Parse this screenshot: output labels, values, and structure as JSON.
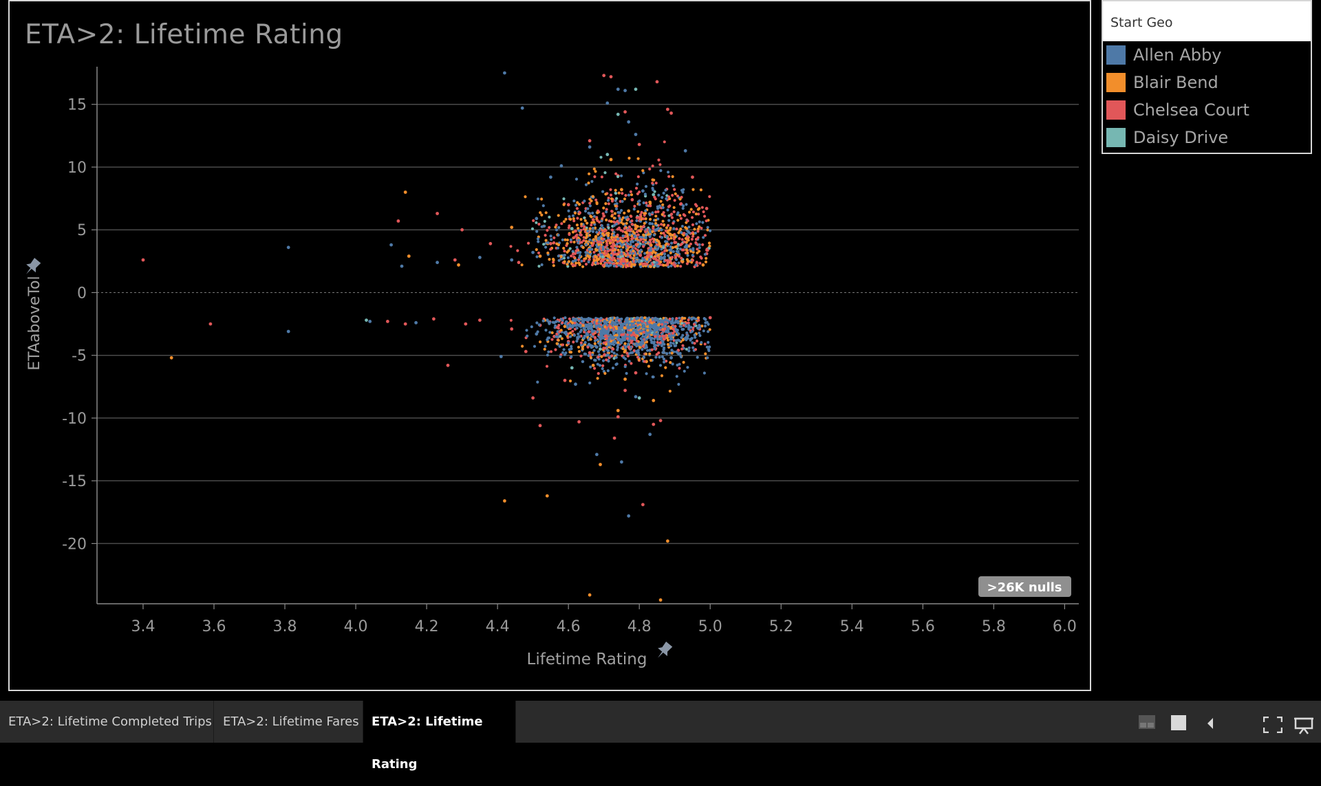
{
  "chart_data": {
    "type": "scatter",
    "title": "ETA>2: Lifetime Rating",
    "xlabel": "Lifetime Rating",
    "ylabel": "ETAaboveTol",
    "xlim": [
      3.27,
      6.04
    ],
    "ylim": [
      -24.8,
      18
    ],
    "x_ticks": [
      "3.4",
      "3.6",
      "3.8",
      "4.0",
      "4.2",
      "4.4",
      "4.6",
      "4.8",
      "5.0",
      "5.2",
      "5.4",
      "5.6",
      "5.8",
      "6.0"
    ],
    "y_ticks": [
      "15",
      "10",
      "5",
      "0",
      "-5",
      "-10",
      "-15",
      "-20"
    ],
    "reference_line_y": 0,
    "grid": "horizontal",
    "null_badge": ">26K nulls",
    "series": [
      {
        "name": "Allen Abby",
        "color": "#4e79a7",
        "points": [
          [
            4.42,
            17.5
          ],
          [
            4.47,
            14.7
          ],
          [
            4.74,
            16.2
          ],
          [
            4.76,
            16.1
          ],
          [
            4.71,
            15.1
          ],
          [
            4.77,
            13.6
          ],
          [
            4.81,
            8.1
          ],
          [
            4.93,
            11.3
          ],
          [
            4.58,
            10.1
          ],
          [
            4.66,
            11.6
          ],
          [
            4.79,
            12.6
          ],
          [
            4.55,
            9.2
          ],
          [
            4.51,
            5.9
          ],
          [
            4.5,
            3.2
          ],
          [
            4.69,
            3.6
          ],
          [
            4.91,
            3.1
          ],
          [
            4.62,
            2.6
          ],
          [
            4.78,
            2.4
          ],
          [
            4.85,
            2.9
          ],
          [
            4.71,
            4.7
          ],
          [
            4.35,
            2.8
          ],
          [
            4.23,
            2.4
          ],
          [
            4.44,
            2.6
          ],
          [
            4.67,
            7.6
          ],
          [
            4.83,
            5.5
          ],
          [
            4.1,
            3.8
          ],
          [
            3.81,
            3.6
          ],
          [
            4.13,
            2.1
          ],
          [
            3.81,
            -3.1
          ],
          [
            4.04,
            -2.3
          ],
          [
            4.17,
            -2.4
          ],
          [
            4.41,
            -5.1
          ],
          [
            4.51,
            -3.3
          ],
          [
            4.73,
            -3.1
          ],
          [
            4.83,
            -4.6
          ],
          [
            4.94,
            -2.8
          ],
          [
            4.62,
            -7.3
          ],
          [
            4.79,
            -8.3
          ],
          [
            4.68,
            -12.9
          ],
          [
            4.75,
            -13.5
          ],
          [
            4.83,
            -11.3
          ],
          [
            4.77,
            -17.8
          ],
          [
            4.64,
            -2.6
          ],
          [
            4.88,
            -2.4
          ],
          [
            4.57,
            -4.1
          ],
          [
            4.69,
            -2.4
          ],
          [
            4.75,
            -2.5
          ],
          [
            4.82,
            -3.9
          ],
          [
            4.54,
            -2.2
          ],
          [
            4.89,
            -5.2
          ]
        ]
      },
      {
        "name": "Blair Bend",
        "color": "#f28e2b",
        "points": [
          [
            3.48,
            -5.2
          ],
          [
            4.14,
            8.0
          ],
          [
            4.15,
            2.9
          ],
          [
            4.29,
            2.2
          ],
          [
            4.44,
            5.2
          ],
          [
            4.57,
            4.6
          ],
          [
            4.63,
            6.3
          ],
          [
            4.7,
            3.5
          ],
          [
            4.75,
            8.2
          ],
          [
            4.79,
            5.1
          ],
          [
            4.85,
            3.8
          ],
          [
            4.92,
            2.5
          ],
          [
            4.98,
            2.2
          ],
          [
            4.72,
            10.6
          ],
          [
            4.83,
            7.2
          ],
          [
            4.61,
            2.3
          ],
          [
            4.65,
            3.8
          ],
          [
            4.88,
            4.9
          ],
          [
            4.52,
            2.9
          ],
          [
            4.77,
            6.5
          ],
          [
            4.59,
            -2.7
          ],
          [
            4.71,
            -3.5
          ],
          [
            4.8,
            -4.2
          ],
          [
            4.88,
            -3.1
          ],
          [
            4.67,
            -5.8
          ],
          [
            4.76,
            -6.9
          ],
          [
            4.93,
            -2.4
          ],
          [
            4.84,
            -8.6
          ],
          [
            4.74,
            -9.4
          ],
          [
            4.54,
            -16.2
          ],
          [
            4.42,
            -16.6
          ],
          [
            4.88,
            -19.8
          ],
          [
            4.86,
            -24.5
          ],
          [
            4.66,
            -24.1
          ],
          [
            4.69,
            -13.7
          ],
          [
            4.64,
            -4.3
          ],
          [
            4.82,
            -5.5
          ],
          [
            4.73,
            -2.6
          ],
          [
            4.96,
            -3.3
          ],
          [
            4.62,
            -2.4
          ]
        ]
      },
      {
        "name": "Chelsea Court",
        "color": "#e15759",
        "points": [
          [
            3.4,
            2.6
          ],
          [
            3.59,
            -2.5
          ],
          [
            4.14,
            -2.5
          ],
          [
            4.12,
            5.7
          ],
          [
            4.23,
            6.3
          ],
          [
            4.22,
            -2.1
          ],
          [
            4.3,
            5.0
          ],
          [
            4.26,
            -5.8
          ],
          [
            4.31,
            -2.5
          ],
          [
            4.38,
            3.9
          ],
          [
            4.44,
            -2.9
          ],
          [
            4.5,
            -8.4
          ],
          [
            4.52,
            -10.6
          ],
          [
            4.56,
            -3.5
          ],
          [
            4.6,
            7.0
          ],
          [
            4.63,
            -2.2
          ],
          [
            4.66,
            12.1
          ],
          [
            4.7,
            17.3
          ],
          [
            4.72,
            17.2
          ],
          [
            4.76,
            14.4
          ],
          [
            4.85,
            16.8
          ],
          [
            4.88,
            14.6
          ],
          [
            4.89,
            14.3
          ],
          [
            4.95,
            9.2
          ],
          [
            4.99,
            6.7
          ],
          [
            4.99,
            3.1
          ],
          [
            5.0,
            -2.0
          ],
          [
            4.97,
            -2.9
          ],
          [
            4.91,
            -4.6
          ],
          [
            4.86,
            -10.2
          ],
          [
            4.84,
            -10.5
          ],
          [
            4.81,
            -16.9
          ],
          [
            4.73,
            -11.6
          ],
          [
            4.74,
            -9.9
          ],
          [
            4.63,
            -10.3
          ],
          [
            4.59,
            -7.0
          ],
          [
            4.48,
            -4.7
          ],
          [
            4.67,
            5.8
          ],
          [
            4.74,
            9.3
          ],
          [
            4.8,
            11.8
          ],
          [
            4.69,
            2.8
          ],
          [
            4.77,
            3.0
          ],
          [
            4.83,
            2.6
          ],
          [
            4.9,
            4.0
          ],
          [
            4.58,
            2.7
          ],
          [
            4.46,
            2.4
          ],
          [
            4.55,
            3.9
          ],
          [
            4.62,
            4.9
          ],
          [
            4.7,
            6.1
          ],
          [
            4.78,
            7.4
          ],
          [
            4.66,
            -4.8
          ],
          [
            4.79,
            -6.4
          ],
          [
            4.87,
            -3.7
          ],
          [
            4.7,
            -2.2
          ],
          [
            4.76,
            -7.8
          ],
          [
            4.6,
            -3.9
          ],
          [
            4.52,
            -2.6
          ],
          [
            4.09,
            -2.3
          ],
          [
            4.35,
            -2.2
          ],
          [
            4.28,
            2.6
          ]
        ]
      },
      {
        "name": "Daisy Drive",
        "color": "#76b7b2",
        "points": [
          [
            4.71,
            11.0
          ],
          [
            4.74,
            14.2
          ],
          [
            4.79,
            16.2
          ],
          [
            4.84,
            7.8
          ],
          [
            4.61,
            5.1
          ],
          [
            4.75,
            3.2
          ],
          [
            4.82,
            4.6
          ],
          [
            4.89,
            2.7
          ],
          [
            4.66,
            2.9
          ],
          [
            4.03,
            -2.2
          ],
          [
            4.75,
            -2.9
          ],
          [
            4.61,
            -6.0
          ],
          [
            4.8,
            -8.4
          ],
          [
            4.78,
            -3.6
          ],
          [
            4.69,
            -4.5
          ],
          [
            4.86,
            -2.3
          ]
        ]
      }
    ]
  },
  "legend": {
    "title": "Start Geo",
    "items": [
      {
        "label": "Allen Abby",
        "color": "#4e79a7"
      },
      {
        "label": "Blair Bend",
        "color": "#f28e2b"
      },
      {
        "label": "Chelsea Court",
        "color": "#e15759"
      },
      {
        "label": "Daisy Drive",
        "color": "#76b7b2"
      }
    ]
  },
  "tabs": [
    {
      "label": "ETA>2: Lifetime Completed Trips",
      "active": false
    },
    {
      "label": "ETA>2: Lifetime Fares",
      "active": false
    },
    {
      "label": "ETA>2: Lifetime Rating",
      "active": true
    }
  ],
  "toolbar_icons": [
    "layout-icon",
    "square-icon",
    "collapse-arrow-icon",
    "fullscreen-icon",
    "presentation-icon"
  ]
}
